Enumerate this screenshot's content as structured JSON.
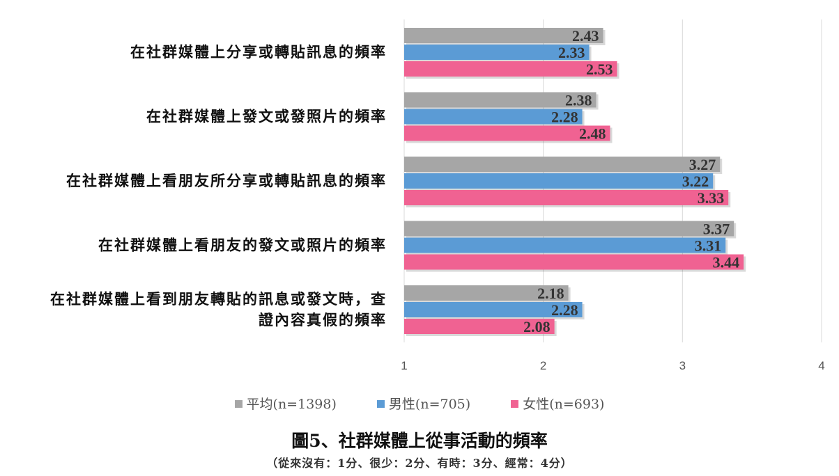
{
  "chart_data": {
    "type": "bar",
    "orientation": "horizontal",
    "title": "圖5、社群媒體上從事活動的頻率",
    "subtitle": "（從來沒有：1分、很少：2分、有時：3分、經常：4分）",
    "categories": [
      [
        "在社群媒體上分享或轉貼訊息的頻率"
      ],
      [
        "在社群媒體上發文或發照片的頻率"
      ],
      [
        "在社群媒體上看朋友所分享或轉貼訊息的頻率"
      ],
      [
        "在社群媒體上看朋友的發文或照片的頻率"
      ],
      [
        "在社群媒體上看到朋友轉貼的訊息或發文時，查",
        "證內容真假的頻率"
      ]
    ],
    "series": [
      {
        "name": "平均(n=1398)",
        "color": "#a6a6a6",
        "values": [
          2.43,
          2.38,
          3.27,
          3.37,
          2.18
        ]
      },
      {
        "name": "男性(n=705)",
        "color": "#5b9bd5",
        "values": [
          2.33,
          2.28,
          3.22,
          3.31,
          2.28
        ]
      },
      {
        "name": "女性(n=693)",
        "color": "#f06292",
        "values": [
          2.53,
          2.48,
          3.33,
          3.44,
          2.08
        ]
      }
    ],
    "xlim": [
      1,
      4
    ],
    "xticks": [
      "1",
      "2",
      "3",
      "4"
    ],
    "grid": true,
    "legend_position": "bottom",
    "data_labels": true
  }
}
